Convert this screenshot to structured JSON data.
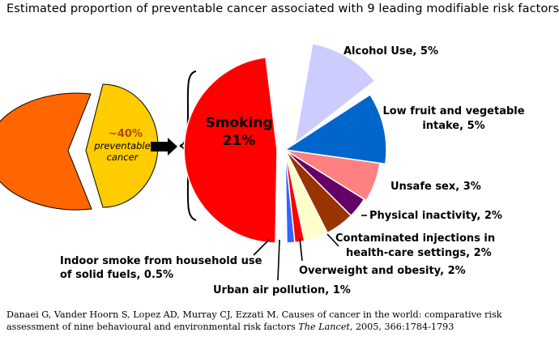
{
  "title": "Estimated proportion of preventable cancer associated with 9 leading modifiable risk factors",
  "preventable": {
    "pct": "~40%",
    "line1": "preventable",
    "line2": "cancer"
  },
  "chart_data": {
    "type": "pie",
    "title": "Estimated proportion of preventable cancer associated with 9 leading modifiable risk factors",
    "series": [
      {
        "key": "smoking",
        "label": "Smoking",
        "pct_text": "21%",
        "value": 21,
        "color": "#ff0000"
      },
      {
        "key": "indoor",
        "label_lines": [
          "Indoor smoke from household use",
          "of solid fuels, 0.5%"
        ],
        "value": 0.5,
        "color": "#3366ff"
      },
      {
        "key": "urban",
        "label_lines": [
          "Urban air pollution, 1%"
        ],
        "value": 1,
        "color": "#ff0000"
      },
      {
        "key": "obesity",
        "label_lines": [
          "Overweight and obesity, 2%"
        ],
        "value": 2,
        "color": "#ffffcc"
      },
      {
        "key": "injections",
        "label_lines": [
          "Contaminated injections in",
          "health-care settings, 2%"
        ],
        "value": 2,
        "color": "#993300"
      },
      {
        "key": "inactivity",
        "label_lines": [
          "Physical inactivity, 2%"
        ],
        "value": 2,
        "color": "#660066"
      },
      {
        "key": "unsafe",
        "label_lines": [
          "Unsafe sex, 3%"
        ],
        "value": 3,
        "color": "#ff8080"
      },
      {
        "key": "fruitveg",
        "label_lines": [
          "Low fruit and vegetable",
          "intake, 5%"
        ],
        "value": 5,
        "color": "#0066cc"
      },
      {
        "key": "alcohol",
        "label_lines": [
          "Alcohol Use, 5%"
        ],
        "value": 5,
        "color": "#ccccff"
      }
    ],
    "summary_pie": [
      {
        "label": "~40% preventable cancer",
        "value": 40,
        "color": "#ffcc00"
      },
      {
        "label": "",
        "value": 60,
        "color": "#ff6600"
      }
    ]
  },
  "citation": {
    "text": "Danaei G, Vander Hoorn S, Lopez AD, Murray CJ, Ezzati M. Causes of cancer in the world: comparative risk assessment of nine behavioural and environmental risk factors",
    "journal": "The Lancet",
    "details": ", 2005, 366:1784-1793"
  }
}
